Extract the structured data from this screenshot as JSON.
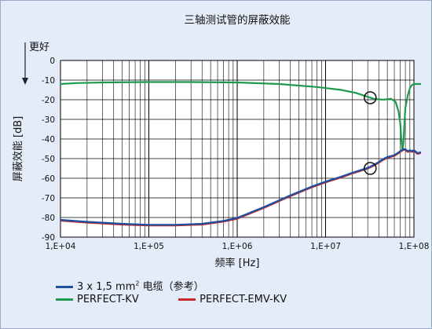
{
  "chart_data": {
    "type": "line",
    "title": "三轴测试管的屏蔽效能",
    "better_label": "更好",
    "ylabel": "屏蔽效能 [dB]",
    "xlabel": "频率 [Hz]",
    "x_scale": "log",
    "xlim": [
      10000,
      100000000
    ],
    "ylim": [
      -90,
      0
    ],
    "grid": true,
    "y_ticks": [
      {
        "value": 0,
        "label": "0"
      },
      {
        "value": -10,
        "label": "-10"
      },
      {
        "value": -20,
        "label": "-20"
      },
      {
        "value": -30,
        "label": "-30"
      },
      {
        "value": -40,
        "label": "-40"
      },
      {
        "value": -50,
        "label": "-50"
      },
      {
        "value": -60,
        "label": "-60"
      },
      {
        "value": -70,
        "label": "-70"
      },
      {
        "value": -80,
        "label": "-80"
      },
      {
        "value": -90,
        "label": "-90"
      }
    ],
    "x_ticks": [
      {
        "value": 10000,
        "label": "1,E+04"
      },
      {
        "value": 100000,
        "label": "1,E+05"
      },
      {
        "value": 1000000,
        "label": "1,E+06"
      },
      {
        "value": 10000000,
        "label": "1,E+07"
      },
      {
        "value": 100000000,
        "label": "1,E+08"
      }
    ],
    "series": [
      {
        "name": "PERFECT-KV",
        "color": "#1e9a50",
        "x": [
          10000,
          15000,
          30000,
          100000,
          300000,
          1000000,
          3000000,
          8000000,
          15000000,
          22000000,
          30000000,
          35000000,
          45000000,
          55000000,
          62000000,
          67000000,
          70000000,
          72000000,
          74000000,
          76000000,
          78000000,
          80000000,
          85000000,
          90000000,
          95000000,
          100000000,
          120000000
        ],
        "y": [
          -12,
          -11.5,
          -11.2,
          -11,
          -11,
          -11.2,
          -12,
          -13.5,
          -15,
          -16.5,
          -18.5,
          -19.5,
          -20,
          -19.5,
          -21,
          -26,
          -32,
          -40,
          -46,
          -42,
          -32,
          -24,
          -18,
          -14,
          -12.5,
          -12,
          -12
        ]
      },
      {
        "name": "PERFECT-EMV-KV",
        "color": "#c0282d",
        "x": [
          10000,
          20000,
          50000,
          100000,
          200000,
          400000,
          700000,
          1000000,
          2000000,
          4000000,
          7000000,
          10000000,
          15000000,
          20000000,
          30000000,
          35000000,
          40000000,
          45000000,
          50000000,
          55000000,
          60000000,
          65000000,
          70000000,
          75000000,
          80000000,
          85000000,
          90000000,
          95000000,
          100000000,
          110000000,
          120000000
        ],
        "y": [
          -81.5,
          -82.5,
          -83.5,
          -84,
          -84,
          -83.5,
          -82,
          -80.5,
          -75,
          -69,
          -64.5,
          -62,
          -59.5,
          -57.5,
          -55,
          -53.5,
          -52,
          -50.5,
          -49.5,
          -49,
          -48.5,
          -47.5,
          -46.5,
          -45.5,
          -45.5,
          -46.5,
          -46,
          -46.5,
          -46,
          -47.5,
          -47
        ]
      },
      {
        "name": "3 x 1,5 mm² 电缆（参考）",
        "color": "#1f4fa0",
        "x": [
          10000,
          20000,
          50000,
          100000,
          200000,
          400000,
          700000,
          1000000,
          2000000,
          4000000,
          7000000,
          10000000,
          15000000,
          20000000,
          30000000,
          35000000,
          40000000,
          45000000,
          50000000,
          55000000,
          60000000,
          65000000,
          70000000,
          75000000,
          80000000,
          85000000,
          90000000,
          95000000,
          100000000,
          110000000,
          120000000
        ],
        "y": [
          -81.2,
          -82.2,
          -83.2,
          -83.7,
          -83.7,
          -83.2,
          -81.7,
          -80.2,
          -74.7,
          -68.7,
          -64.2,
          -61.7,
          -59.2,
          -57.2,
          -54.7,
          -53.2,
          -51.7,
          -50.2,
          -49.2,
          -48.7,
          -48.2,
          -47.2,
          -46.2,
          -45.2,
          -45.2,
          -46.2,
          -45.7,
          -46.2,
          -45.7,
          -47.2,
          -46.7
        ]
      }
    ],
    "markers": [
      {
        "x": 32000000,
        "y": -19
      },
      {
        "x": 32000000,
        "y": -55
      }
    ]
  },
  "legend": {
    "items": [
      {
        "label_main": "3 x 1,5 mm",
        "label_sup": "2",
        "label_rest": " 电缆（参考）",
        "color": "#1f4fa0"
      },
      {
        "label": "PERFECT-KV",
        "color": "#1e9a50"
      },
      {
        "label": "PERFECT-EMV-KV",
        "color": "#c0282d"
      }
    ]
  }
}
